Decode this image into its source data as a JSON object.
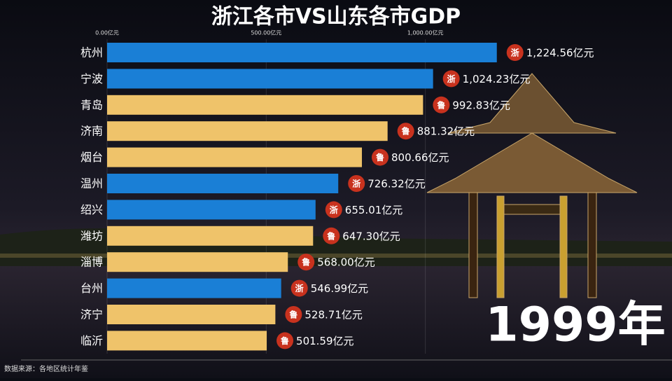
{
  "chart_data": {
    "type": "bar",
    "orientation": "horizontal",
    "title": "浙江各市VS山东各市GDP",
    "year_label": "1999年",
    "source": "数据来源：各地区统计年鉴",
    "categories": [
      "杭州",
      "宁波",
      "青岛",
      "济南",
      "烟台",
      "温州",
      "绍兴",
      "潍坊",
      "淄博",
      "台州",
      "济宁",
      "临沂"
    ],
    "values": [
      1224.56,
      1024.23,
      992.83,
      881.32,
      800.66,
      726.32,
      655.01,
      647.3,
      568.0,
      546.99,
      528.71,
      501.59
    ],
    "value_labels": [
      "1,224.56亿元",
      "1,024.23亿元",
      "992.83亿元",
      "881.32亿元",
      "800.66亿元",
      "726.32亿元",
      "655.01亿元",
      "647.30亿元",
      "568.00亿元",
      "546.99亿元",
      "528.71亿元",
      "501.59亿元"
    ],
    "badges": [
      "浙",
      "浙",
      "鲁",
      "鲁",
      "鲁",
      "浙",
      "浙",
      "鲁",
      "鲁",
      "浙",
      "鲁",
      "鲁"
    ],
    "colors": [
      "#1a7fd6",
      "#1a7fd6",
      "#efc36a",
      "#efc36a",
      "#efc36a",
      "#1a7fd6",
      "#1a7fd6",
      "#efc36a",
      "#efc36a",
      "#1a7fd6",
      "#efc36a",
      "#efc36a"
    ],
    "xlim": [
      0,
      1775
    ],
    "xticks": [
      {
        "value": 0,
        "label": "0.00亿元"
      },
      {
        "value": 500,
        "label": "500.00亿元"
      },
      {
        "value": 1000,
        "label": "1,000.00亿元"
      }
    ],
    "grid": true
  }
}
